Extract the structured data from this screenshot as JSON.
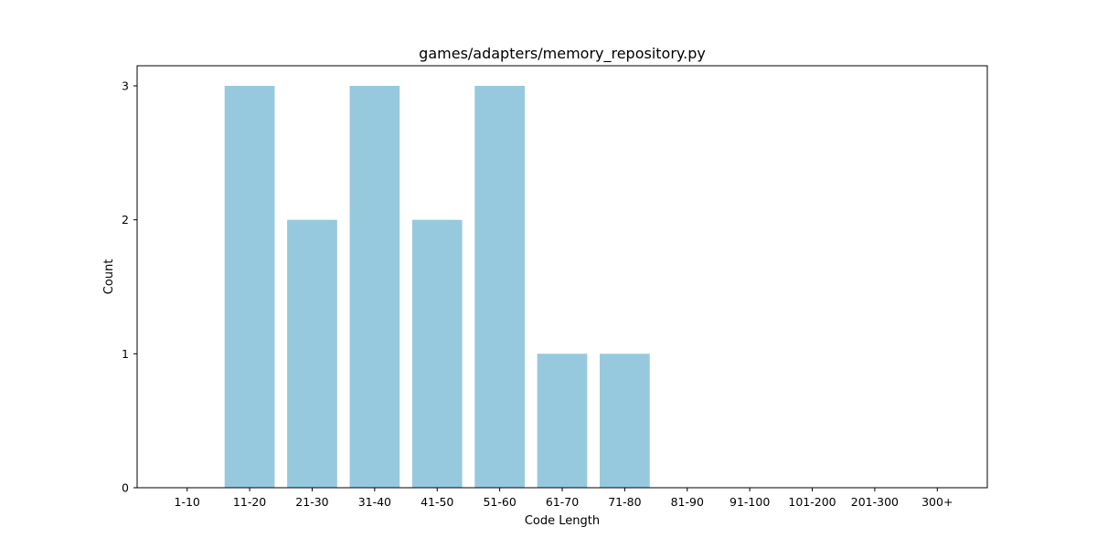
{
  "chart_data": {
    "type": "bar",
    "title": "games/adapters/memory_repository.py",
    "xlabel": "Code Length",
    "ylabel": "Count",
    "categories": [
      "1-10",
      "11-20",
      "21-30",
      "31-40",
      "41-50",
      "51-60",
      "61-70",
      "71-80",
      "81-90",
      "91-100",
      "101-200",
      "201-300",
      "300+"
    ],
    "values": [
      0,
      3,
      2,
      3,
      2,
      3,
      1,
      1,
      0,
      0,
      0,
      0,
      0
    ],
    "yticks": [
      0,
      1,
      2,
      3
    ],
    "ylim": [
      0,
      3.15
    ],
    "bar_color": "#96c9de",
    "grid": false,
    "legend": "none"
  }
}
